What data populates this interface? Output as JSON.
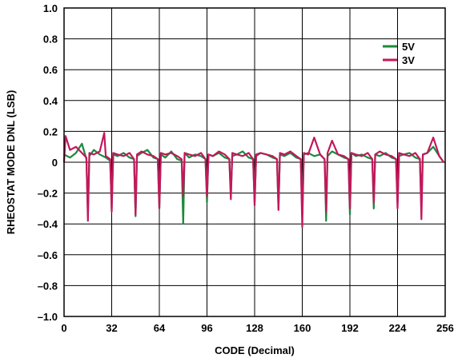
{
  "chart_data": {
    "type": "line",
    "title": "",
    "xlabel": "CODE (Decimal)",
    "ylabel": "RHEOSTAT MODE DNL (LSB)",
    "xlim": [
      0,
      256
    ],
    "ylim": [
      -1.0,
      1.0
    ],
    "x_ticks": [
      0,
      32,
      64,
      96,
      128,
      160,
      192,
      224,
      256
    ],
    "x_tick_labels": [
      "0",
      "32",
      "64",
      "96",
      "128",
      "160",
      "192",
      "224",
      "256"
    ],
    "y_ticks": [
      1.0,
      0.8,
      0.6,
      0.4,
      0.2,
      0,
      -0.2,
      -0.4,
      -0.6,
      -0.8,
      -1.0
    ],
    "y_tick_labels": [
      "1.0",
      "0.8",
      "0.6",
      "0.4",
      "0.2",
      "0",
      "–0.2",
      "–0.4",
      "–0.6",
      "–0.8",
      "–1.0"
    ],
    "grid": true,
    "legend_position": "top-right",
    "series": [
      {
        "name": "5V",
        "color": "#1a8a3c",
        "x": [
          0,
          4,
          8,
          12,
          15,
          16,
          17,
          20,
          24,
          28,
          31,
          32,
          33,
          36,
          40,
          44,
          47,
          48,
          49,
          52,
          56,
          60,
          63,
          64,
          65,
          68,
          72,
          76,
          79,
          80,
          81,
          84,
          88,
          92,
          95,
          96,
          97,
          100,
          104,
          108,
          111,
          112,
          113,
          116,
          120,
          124,
          127,
          128,
          129,
          132,
          136,
          140,
          143,
          144,
          145,
          148,
          152,
          156,
          159,
          160,
          161,
          164,
          168,
          172,
          175,
          176,
          177,
          180,
          184,
          188,
          191,
          192,
          193,
          196,
          200,
          204,
          207,
          208,
          209,
          212,
          216,
          220,
          223,
          224,
          225,
          228,
          232,
          236,
          239,
          240,
          241,
          244,
          248,
          252,
          255
        ],
        "values": [
          0.05,
          0.03,
          0.06,
          0.12,
          0.02,
          -0.33,
          0.04,
          0.08,
          0.05,
          0.03,
          0.01,
          -0.3,
          0.05,
          0.04,
          0.06,
          0.03,
          0.02,
          -0.35,
          0.04,
          0.06,
          0.08,
          0.03,
          0.02,
          -0.3,
          0.05,
          0.03,
          0.07,
          0.02,
          0.01,
          -0.4,
          0.06,
          0.03,
          0.05,
          0.04,
          0.02,
          -0.26,
          0.05,
          0.04,
          0.06,
          0.03,
          0.02,
          -0.22,
          0.04,
          0.05,
          0.07,
          0.03,
          0.02,
          -0.26,
          0.04,
          0.06,
          0.05,
          0.03,
          0.02,
          -0.3,
          0.05,
          0.04,
          0.06,
          0.03,
          0.02,
          -0.34,
          0.05,
          0.06,
          0.04,
          0.05,
          0.02,
          -0.38,
          0.04,
          0.07,
          0.05,
          0.03,
          0.02,
          -0.34,
          0.06,
          0.04,
          0.05,
          0.03,
          0.02,
          -0.3,
          0.05,
          0.04,
          0.06,
          0.03,
          0.02,
          -0.26,
          0.04,
          0.05,
          0.06,
          0.03,
          0.02,
          -0.26,
          0.05,
          0.06,
          0.1,
          0.04,
          0.0
        ]
      },
      {
        "name": "3V",
        "color": "#c2185b",
        "x": [
          0,
          1,
          4,
          8,
          12,
          15,
          16,
          17,
          20,
          24,
          27,
          28,
          31,
          32,
          33,
          36,
          40,
          44,
          47,
          48,
          49,
          52,
          56,
          60,
          63,
          64,
          65,
          68,
          72,
          76,
          79,
          80,
          81,
          84,
          88,
          92,
          95,
          96,
          97,
          100,
          104,
          108,
          111,
          112,
          113,
          116,
          120,
          124,
          127,
          128,
          129,
          132,
          136,
          140,
          143,
          144,
          145,
          148,
          152,
          156,
          159,
          160,
          161,
          164,
          168,
          172,
          175,
          176,
          177,
          180,
          184,
          188,
          191,
          192,
          193,
          196,
          200,
          204,
          207,
          208,
          209,
          212,
          216,
          220,
          223,
          224,
          225,
          228,
          232,
          236,
          239,
          240,
          241,
          244,
          248,
          252,
          255
        ],
        "values": [
          0.0,
          0.17,
          0.08,
          0.1,
          0.06,
          0.03,
          -0.38,
          0.06,
          0.05,
          0.07,
          0.19,
          0.04,
          0.02,
          -0.32,
          0.06,
          0.05,
          0.04,
          0.06,
          0.02,
          -0.34,
          0.05,
          0.07,
          0.05,
          0.04,
          0.02,
          -0.3,
          0.06,
          0.05,
          0.06,
          0.04,
          0.02,
          -0.22,
          0.06,
          0.05,
          0.04,
          0.06,
          0.02,
          -0.22,
          0.05,
          0.04,
          0.07,
          0.05,
          0.02,
          -0.24,
          0.06,
          0.05,
          0.04,
          0.06,
          0.02,
          -0.28,
          0.05,
          0.06,
          0.05,
          0.04,
          0.02,
          -0.31,
          0.06,
          0.05,
          0.07,
          0.04,
          0.02,
          -0.42,
          0.06,
          0.05,
          0.16,
          0.05,
          0.02,
          -0.32,
          0.06,
          0.14,
          0.05,
          0.04,
          0.02,
          -0.3,
          0.06,
          0.05,
          0.04,
          0.06,
          0.02,
          -0.26,
          0.05,
          0.07,
          0.05,
          0.04,
          0.02,
          -0.3,
          0.06,
          0.05,
          0.04,
          0.06,
          0.02,
          -0.37,
          0.05,
          0.06,
          0.16,
          0.04,
          0.0
        ]
      }
    ]
  }
}
